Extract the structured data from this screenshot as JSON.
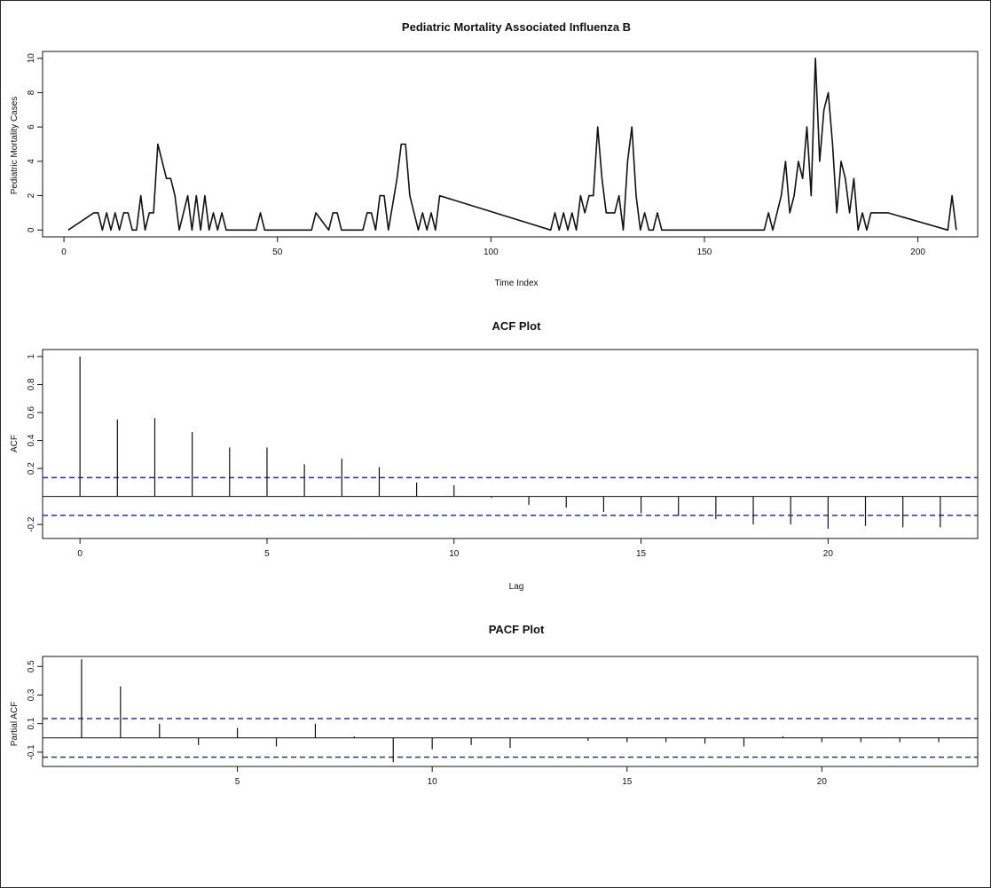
{
  "colors": {
    "line": "#111111",
    "ci": "#2a2ad4",
    "axis": "#111111",
    "background": "#ffffff"
  },
  "chart_data": [
    {
      "type": "line",
      "title": "Pediatric Mortality Associated Influenza B",
      "xlabel": "Time Index",
      "ylabel": "Pediatric Mortality Cases",
      "xlim": [
        -5,
        214
      ],
      "ylim": [
        -0.4,
        10.4
      ],
      "xticks": [
        0,
        50,
        100,
        150,
        200
      ],
      "yticks": [
        0,
        2,
        4,
        6,
        8,
        10
      ],
      "grid": false,
      "legend": "none",
      "series": [
        {
          "x": [
            1,
            7,
            8,
            9,
            10,
            11,
            12,
            13,
            14,
            15,
            16,
            17,
            18,
            19,
            20,
            21,
            22,
            23,
            24,
            25,
            26,
            27,
            28,
            29,
            30,
            31,
            32,
            33,
            34,
            35,
            36,
            37,
            38,
            45,
            46,
            47,
            58,
            59,
            62,
            63,
            64,
            65,
            70,
            71,
            72,
            73,
            74,
            75,
            76,
            78,
            79,
            80,
            81,
            82,
            83,
            84,
            85,
            86,
            87,
            88,
            114,
            115,
            116,
            117,
            118,
            119,
            120,
            121,
            122,
            123,
            124,
            125,
            126,
            127,
            128,
            129,
            130,
            131,
            132,
            133,
            134,
            135,
            136,
            137,
            138,
            139,
            140,
            164,
            165,
            166,
            167,
            168,
            169,
            170,
            171,
            172,
            173,
            174,
            175,
            176,
            177,
            178,
            179,
            180,
            181,
            182,
            183,
            184,
            185,
            186,
            187,
            188,
            189,
            190,
            191,
            192,
            193,
            207,
            208,
            209
          ],
          "y": [
            0,
            1,
            1,
            0,
            1,
            0,
            1,
            0,
            1,
            1,
            0,
            0,
            2,
            0,
            1,
            1,
            5,
            4,
            3,
            3,
            2,
            0,
            1,
            2,
            0,
            2,
            0,
            2,
            0,
            1,
            0,
            1,
            0,
            0,
            1,
            0,
            0,
            1,
            0,
            1,
            1,
            0,
            0,
            1,
            1,
            0,
            2,
            2,
            0,
            3,
            5,
            5,
            2,
            1,
            0,
            1,
            0,
            1,
            0,
            2,
            0,
            1,
            0,
            1,
            0,
            1,
            0,
            2,
            1,
            2,
            2,
            6,
            3,
            1,
            1,
            1,
            2,
            0,
            4,
            6,
            2,
            0,
            1,
            0,
            0,
            1,
            0,
            0,
            1,
            0,
            1,
            2,
            4,
            1,
            2,
            4,
            3,
            6,
            2,
            10,
            4,
            7,
            8,
            5,
            1,
            4,
            3,
            1,
            3,
            0,
            1,
            0,
            1,
            1,
            1,
            1,
            1,
            0,
            2,
            0
          ]
        }
      ]
    },
    {
      "type": "bar",
      "title": "ACF Plot",
      "xlabel": "Lag",
      "ylabel": "ACF",
      "xlim": [
        -1,
        24
      ],
      "ylim": [
        -0.3,
        1.05
      ],
      "xticks": [
        0,
        5,
        10,
        15,
        20
      ],
      "yticks": [
        -0.2,
        0.2,
        0.4,
        0.6,
        0.8,
        1.0
      ],
      "ci": 0.135,
      "grid": false,
      "x": [
        0,
        1,
        2,
        3,
        4,
        5,
        6,
        7,
        8,
        9,
        10,
        11,
        12,
        13,
        14,
        15,
        16,
        17,
        18,
        19,
        20,
        21,
        22,
        23
      ],
      "values": [
        1.0,
        0.55,
        0.56,
        0.46,
        0.35,
        0.35,
        0.23,
        0.27,
        0.21,
        0.1,
        0.08,
        -0.01,
        -0.06,
        -0.08,
        -0.11,
        -0.12,
        -0.14,
        -0.16,
        -0.2,
        -0.2,
        -0.23,
        -0.21,
        -0.22,
        -0.22
      ]
    },
    {
      "type": "bar",
      "title": "PACF Plot",
      "xlabel": "",
      "ylabel": "Partial ACF",
      "xlim": [
        0,
        24
      ],
      "ylim": [
        -0.2,
        0.57
      ],
      "xticks": [
        5,
        10,
        15,
        20
      ],
      "yticks": [
        -0.1,
        0.1,
        0.3,
        0.5
      ],
      "ci": 0.135,
      "grid": false,
      "x": [
        1,
        2,
        3,
        4,
        5,
        6,
        7,
        8,
        9,
        10,
        11,
        12,
        13,
        14,
        15,
        16,
        17,
        18,
        19,
        20,
        21,
        22,
        23
      ],
      "values": [
        0.55,
        0.36,
        0.1,
        -0.05,
        0.07,
        -0.06,
        0.1,
        0.01,
        -0.17,
        -0.08,
        -0.05,
        -0.07,
        0.0,
        -0.02,
        -0.03,
        -0.03,
        -0.04,
        -0.06,
        0.01,
        -0.03,
        -0.03,
        -0.03,
        -0.03
      ]
    }
  ]
}
